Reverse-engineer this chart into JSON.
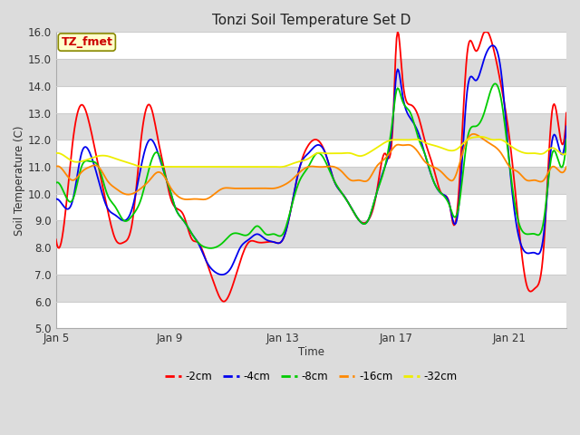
{
  "title": "Tonzi Soil Temperature Set D",
  "xlabel": "Time",
  "ylabel": "Soil Temperature (C)",
  "ylim": [
    5.0,
    16.0
  ],
  "yticks": [
    5.0,
    6.0,
    7.0,
    8.0,
    9.0,
    10.0,
    11.0,
    12.0,
    13.0,
    14.0,
    15.0,
    16.0
  ],
  "xtick_pos": [
    0,
    4,
    8,
    12,
    16
  ],
  "xtick_labels": [
    "Jan 5",
    "Jan 9",
    "Jan 13",
    "Jan 17",
    "Jan 21"
  ],
  "xlim": [
    0,
    18
  ],
  "annotation_text": "TZ_fmet",
  "annotation_box_color": "#FFFFCC",
  "annotation_border_color": "#888800",
  "annotation_text_color": "#CC0000",
  "colors": {
    "-2cm": "#FF0000",
    "-4cm": "#0000EE",
    "-8cm": "#00CC00",
    "-16cm": "#FF8800",
    "-32cm": "#EEEE00"
  },
  "bg_color": "#DCDCDC",
  "plot_bg_color": "#DCDCDC",
  "grid_color": "#FFFFFF",
  "linewidth": 1.3
}
